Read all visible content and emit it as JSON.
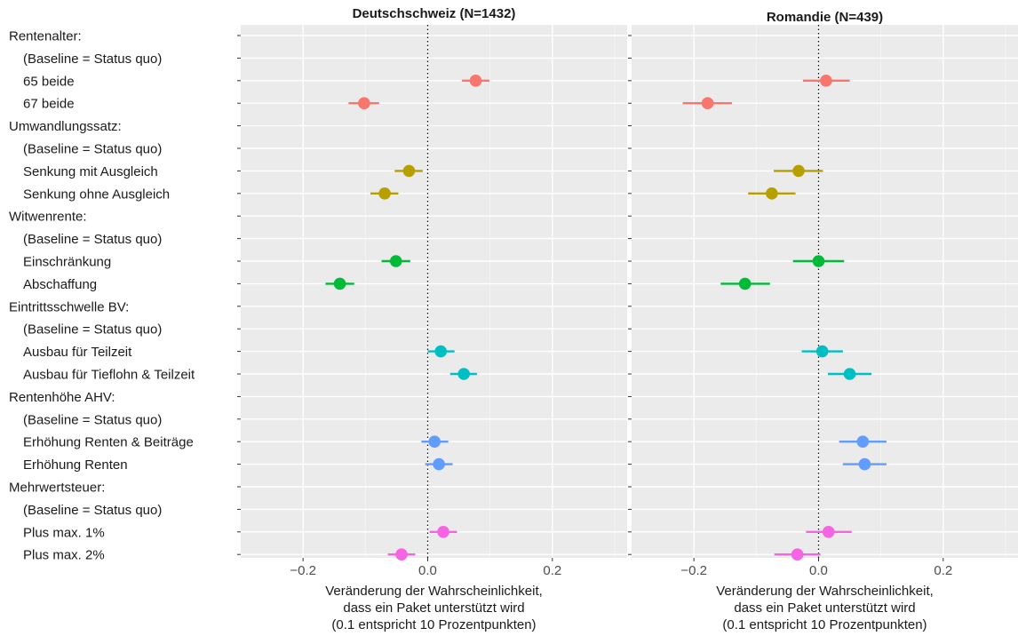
{
  "chart_data": {
    "type": "scatter",
    "subtype": "coefficient plot with confidence intervals (faceted)",
    "xlabel_lines": [
      "Veränderung der Wahrscheinlichkeit,",
      "dass ein Paket unterstützt wird",
      "(0.1 entspricht 10 Prozentpunkten)"
    ],
    "xlim": [
      -0.3,
      0.32
    ],
    "xticks": [
      -0.2,
      0.0,
      0.2
    ],
    "xtick_labels": [
      "−0.2",
      "0.0",
      "0.2"
    ],
    "reference_line": {
      "x": 0,
      "style": "dotted"
    },
    "grid": true,
    "legend": "none",
    "row_labels": [
      "Rentenalter:",
      "(Baseline = Status quo)",
      "65 beide",
      "67 beide",
      "Umwandlungssatz:",
      "(Baseline = Status quo)",
      "Senkung mit Ausgleich",
      "Senkung ohne Ausgleich",
      "Witwenrente:",
      "(Baseline = Status quo)",
      "Einschränkung",
      "Abschaffung",
      "Eintrittsschwelle BV:",
      "(Baseline = Status quo)",
      "Ausbau für Teilzeit",
      "Ausbau für Tieflohn & Teilzeit",
      "Rentenhöhe AHV:",
      "(Baseline = Status quo)",
      "Erhöhung Renten & Beiträge",
      "Erhöhung Renten",
      "Mehrwertsteuer:",
      "(Baseline = Status quo)",
      "Plus max. 1%",
      "Plus max. 2%"
    ],
    "row_indent": [
      false,
      true,
      true,
      true,
      false,
      true,
      true,
      true,
      false,
      true,
      true,
      true,
      false,
      true,
      true,
      true,
      false,
      true,
      true,
      true,
      false,
      true,
      true,
      true
    ],
    "group_colors": {
      "Rentenalter": "#F8766D",
      "Umwandlungssatz": "#B79F00",
      "Witwenrente": "#00BA38",
      "Eintrittsschwelle BV": "#00BFC4",
      "Rentenhöhe AHV": "#619CFF",
      "Mehrwertsteuer": "#F564E3"
    },
    "panels": [
      {
        "title": "Deutschschweiz (N=1432)",
        "points": [
          {
            "row": 2,
            "group": "Rentenalter",
            "est": 0.077,
            "lo": 0.055,
            "hi": 0.099
          },
          {
            "row": 3,
            "group": "Rentenalter",
            "est": -0.102,
            "lo": -0.127,
            "hi": -0.078
          },
          {
            "row": 6,
            "group": "Umwandlungssatz",
            "est": -0.03,
            "lo": -0.053,
            "hi": -0.008
          },
          {
            "row": 7,
            "group": "Umwandlungssatz",
            "est": -0.069,
            "lo": -0.092,
            "hi": -0.047
          },
          {
            "row": 10,
            "group": "Witwenrente",
            "est": -0.051,
            "lo": -0.074,
            "hi": -0.028
          },
          {
            "row": 11,
            "group": "Witwenrente",
            "est": -0.141,
            "lo": -0.164,
            "hi": -0.118
          },
          {
            "row": 14,
            "group": "Eintrittsschwelle BV",
            "est": 0.021,
            "lo": 0.0,
            "hi": 0.043
          },
          {
            "row": 15,
            "group": "Eintrittsschwelle BV",
            "est": 0.058,
            "lo": 0.036,
            "hi": 0.079
          },
          {
            "row": 18,
            "group": "Rentenhöhe AHV",
            "est": 0.011,
            "lo": -0.01,
            "hi": 0.033
          },
          {
            "row": 19,
            "group": "Rentenhöhe AHV",
            "est": 0.018,
            "lo": -0.004,
            "hi": 0.04
          },
          {
            "row": 22,
            "group": "Mehrwertsteuer",
            "est": 0.025,
            "lo": 0.003,
            "hi": 0.047
          },
          {
            "row": 23,
            "group": "Mehrwertsteuer",
            "est": -0.042,
            "lo": -0.064,
            "hi": -0.02
          }
        ]
      },
      {
        "title": "Romandie (N=439)",
        "points": [
          {
            "row": 2,
            "group": "Rentenalter",
            "est": 0.012,
            "lo": -0.025,
            "hi": 0.05
          },
          {
            "row": 3,
            "group": "Rentenalter",
            "est": -0.178,
            "lo": -0.218,
            "hi": -0.139
          },
          {
            "row": 6,
            "group": "Umwandlungssatz",
            "est": -0.032,
            "lo": -0.072,
            "hi": 0.007
          },
          {
            "row": 7,
            "group": "Umwandlungssatz",
            "est": -0.075,
            "lo": -0.113,
            "hi": -0.037
          },
          {
            "row": 10,
            "group": "Witwenrente",
            "est": 0.0,
            "lo": -0.041,
            "hi": 0.041
          },
          {
            "row": 11,
            "group": "Witwenrente",
            "est": -0.118,
            "lo": -0.157,
            "hi": -0.078
          },
          {
            "row": 14,
            "group": "Eintrittsschwelle BV",
            "est": 0.006,
            "lo": -0.027,
            "hi": 0.039
          },
          {
            "row": 15,
            "group": "Eintrittsschwelle BV",
            "est": 0.05,
            "lo": 0.015,
            "hi": 0.085
          },
          {
            "row": 18,
            "group": "Rentenhöhe AHV",
            "est": 0.071,
            "lo": 0.033,
            "hi": 0.109
          },
          {
            "row": 19,
            "group": "Rentenhöhe AHV",
            "est": 0.074,
            "lo": 0.039,
            "hi": 0.109
          },
          {
            "row": 22,
            "group": "Mehrwertsteuer",
            "est": 0.016,
            "lo": -0.02,
            "hi": 0.053
          },
          {
            "row": 23,
            "group": "Mehrwertsteuer",
            "est": -0.034,
            "lo": -0.071,
            "hi": 0.003
          }
        ]
      }
    ]
  }
}
